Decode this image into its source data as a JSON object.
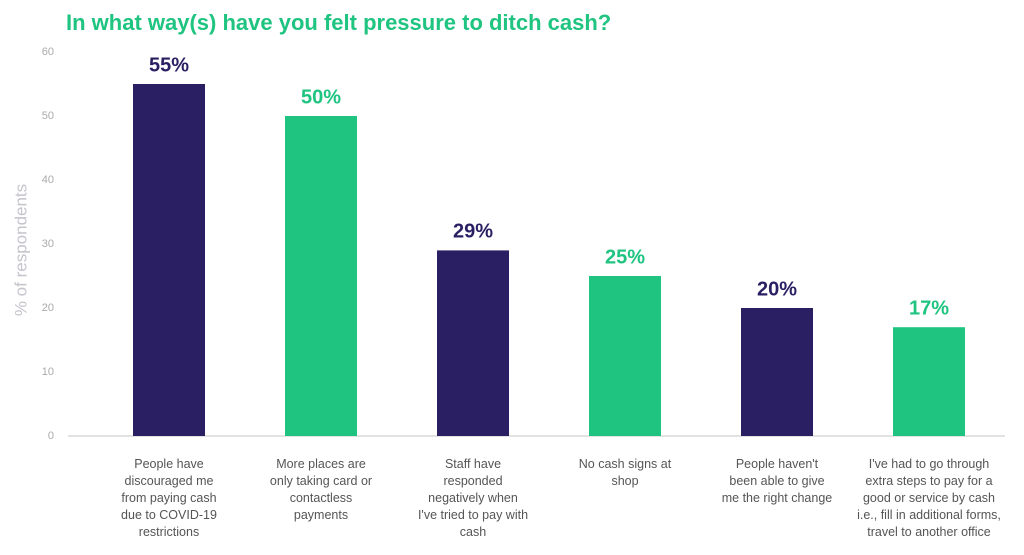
{
  "chart_data": {
    "type": "bar",
    "title": "In what way(s) have you felt pressure to ditch cash?",
    "y_label": "% of respondents",
    "categories": [
      "People have discouraged me from paying cash due to COVID-19 restrictions",
      "More places are only taking card or contactless payments",
      "Staff have responded negatively when I've tried to pay with cash",
      "No cash signs at shop",
      "People haven't been able to give me the right change",
      "I've had to go through extra steps to pay for a good or service by cash i.e., fill in additional forms, travel to another office"
    ],
    "values": [
      55,
      50,
      29,
      25,
      20,
      17
    ],
    "value_labels": [
      "55%",
      "50%",
      "29%",
      "25%",
      "20%",
      "17%"
    ],
    "colors": [
      "#2b1f63",
      "#1fc480",
      "#2b1f63",
      "#1fc480",
      "#2b1f63",
      "#1fc480"
    ],
    "ylim": [
      0,
      60
    ],
    "yticks": [
      0,
      10,
      20,
      30,
      40,
      50,
      60
    ],
    "grid": false
  }
}
